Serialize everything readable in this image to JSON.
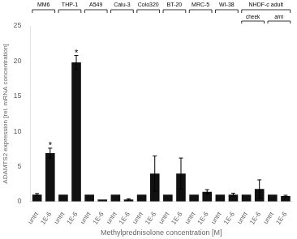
{
  "chart_data": {
    "type": "bar",
    "xlabel": "Methylprednisolone concentration [M]",
    "ylabel": "ADAMTS2 expression [rel. mRNA concentration]",
    "categories": [
      "untrt",
      "1E-6",
      "untrt",
      "1E-6",
      "untrt",
      "1E-6",
      "untrt",
      "1E-6",
      "untrt",
      "1E-6",
      "untrt",
      "1E-6",
      "untrt",
      "1E-6",
      "untrt",
      "1E-6",
      "untrt",
      "1E-6",
      "untrt",
      "1E-6"
    ],
    "values": [
      1.0,
      6.9,
      1.0,
      19.8,
      1.0,
      0.3,
      1.0,
      0.3,
      1.0,
      4.0,
      1.0,
      4.0,
      1.0,
      1.4,
      1.0,
      1.0,
      1.0,
      1.8,
      1.0,
      0.8
    ],
    "errors": [
      0.15,
      0.7,
      0.0,
      1.0,
      0.0,
      0.0,
      0.0,
      0.1,
      0.0,
      2.5,
      0.0,
      2.2,
      0.0,
      0.3,
      0.0,
      0.2,
      0.0,
      1.3,
      0.0,
      0.1
    ],
    "color": "#111111",
    "ylim": [
      0,
      25
    ],
    "yticks": [
      0,
      5,
      10,
      15,
      20,
      25
    ],
    "grid": false,
    "groups": [
      {
        "label": "MM6",
        "first": 0,
        "last": 1
      },
      {
        "label": "THP-1",
        "first": 2,
        "last": 3
      },
      {
        "label": "A549",
        "first": 4,
        "last": 5
      },
      {
        "label": "Calu-3",
        "first": 6,
        "last": 7
      },
      {
        "label": "Colo320",
        "first": 8,
        "last": 9
      },
      {
        "label": "BT-20",
        "first": 10,
        "last": 11
      },
      {
        "label": "MRC-5",
        "first": 12,
        "last": 13
      },
      {
        "label": "WI-38",
        "first": 14,
        "last": 15
      },
      {
        "label": "NHDF-c adult",
        "first": 16,
        "last": 19
      }
    ],
    "subgroups": [
      {
        "label": "cheek",
        "first": 16,
        "last": 17
      },
      {
        "label": "arm",
        "first": 18,
        "last": 19
      }
    ],
    "annotations": [
      {
        "text": "*",
        "index": 1
      },
      {
        "text": "*",
        "index": 3
      }
    ]
  }
}
